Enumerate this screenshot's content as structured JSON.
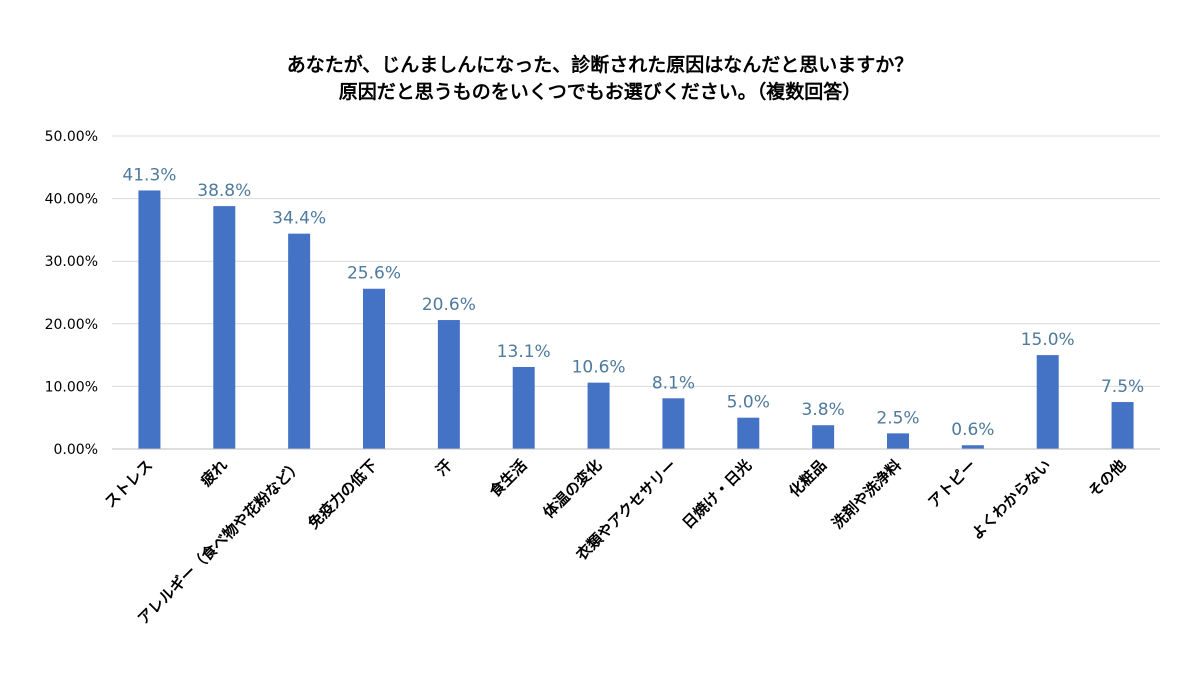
{
  "chart_data": {
    "type": "bar",
    "title_line1": "あなたが、じんましんになった、診断された原因はなんだと思いますか？",
    "title_line2": "原因だと思うものをいくつでもお選びください。（複数回答）",
    "categories": [
      "ストレス",
      "疲れ",
      "アレルギー（食べ物や花粉など）",
      "免疫力の低下",
      "汗",
      "食生活",
      "体温の変化",
      "衣類やアクセサリー",
      "日焼け・日光",
      "化粧品",
      "洗剤や洗浄料",
      "アトピー",
      "よくわからない",
      "その他"
    ],
    "values": [
      41.3,
      38.8,
      34.4,
      25.6,
      20.6,
      13.1,
      10.6,
      8.1,
      5.0,
      3.8,
      2.5,
      0.6,
      15.0,
      7.5
    ],
    "data_labels": [
      "41.3%",
      "38.8%",
      "34.4%",
      "25.6%",
      "20.6%",
      "13.1%",
      "10.6%",
      "8.1%",
      "5.0%",
      "3.8%",
      "2.5%",
      "0.6%",
      "15.0%",
      "7.5%"
    ],
    "yticks": [
      0,
      10,
      20,
      30,
      40,
      50
    ],
    "ytick_labels": [
      "0.00%",
      "10.00%",
      "20.00%",
      "30.00%",
      "40.00%",
      "50.00%"
    ],
    "ylim": [
      0,
      50
    ],
    "xlabel": "",
    "ylabel": "",
    "grid": true,
    "legend": "none",
    "colors": {
      "bar": "#4472c4",
      "data_label": "#4e7a9c",
      "grid": "#d9d9d9"
    }
  }
}
